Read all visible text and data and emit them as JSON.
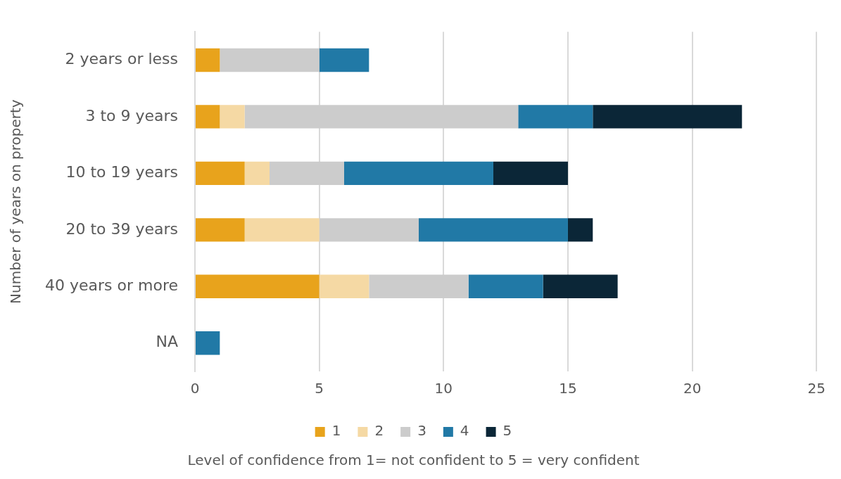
{
  "chart_data": {
    "type": "bar",
    "orientation": "horizontal",
    "stacked": true,
    "xlabel": "Level of confidence from 1= not confident to 5 = very confident",
    "ylabel": "Number of years on property",
    "categories": [
      "2 years or less",
      "3 to 9 years",
      "10 to 19 years",
      "20 to 39 years",
      "40 years or more",
      "NA"
    ],
    "series": [
      {
        "name": "1",
        "color": "#e8a31c",
        "values": [
          1,
          1,
          2,
          2,
          5,
          0
        ]
      },
      {
        "name": "2",
        "color": "#f5d9a4",
        "values": [
          0,
          1,
          1,
          3,
          2,
          0
        ]
      },
      {
        "name": "3",
        "color": "#cccccc",
        "values": [
          4,
          11,
          3,
          4,
          4,
          0
        ]
      },
      {
        "name": "4",
        "color": "#2179a6",
        "values": [
          2,
          3,
          6,
          6,
          3,
          1
        ]
      },
      {
        "name": "5",
        "color": "#0b2637",
        "values": [
          0,
          6,
          3,
          1,
          3,
          0
        ]
      }
    ],
    "xlim": [
      0,
      25
    ],
    "xticks": [
      0,
      5,
      10,
      15,
      20,
      25
    ],
    "grid": "x",
    "legend": "bottom"
  }
}
